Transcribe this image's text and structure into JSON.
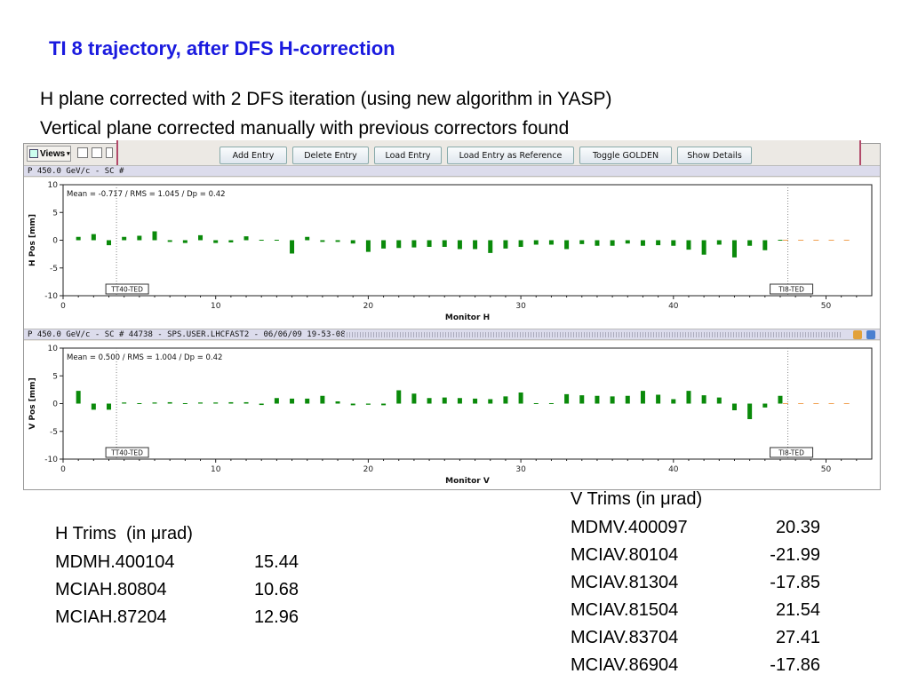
{
  "header": {
    "title": "TI 8 trajectory, after DFS H-correction",
    "line1": "H plane corrected with 2 DFS iteration (using new algorithm in YASP)",
    "line2": "Vertical plane corrected manually with previous correctors found"
  },
  "toolbar": {
    "views_label": "Views"
  },
  "popup_buttons": [
    "Add Entry",
    "Delete Entry",
    "Load Entry",
    "Load Entry as Reference",
    "Toggle GOLDEN",
    "Show Details"
  ],
  "panel_h": {
    "header": "P 450.0 GeV/c - SC #"
  },
  "panel_v": {
    "header": "P 450.0 GeV/c - SC # 44738 - SPS.USER.LHCFAST2 - 06/06/09 19-53-08"
  },
  "colors": {
    "bar": "#0a8a0a",
    "dash": "#f0a050",
    "marker": "#888888"
  },
  "chart_data": [
    {
      "type": "bar",
      "title": "",
      "stats": "Mean =  -0.717 / RMS =   1.045 / Dp =   0.42",
      "xlabel": "Monitor H",
      "ylabel": "H Pos [mm]",
      "xlim": [
        0,
        53
      ],
      "ylim": [
        -10,
        10
      ],
      "xticks": [
        0,
        10,
        20,
        30,
        40,
        50
      ],
      "yticks": [
        10,
        5,
        0,
        -5,
        -10
      ],
      "markers": [
        {
          "x": 3.5,
          "label": "TT40-TED"
        },
        {
          "x": 47.5,
          "label": "TI8-TED"
        }
      ],
      "x": [
        1,
        2,
        3,
        4,
        5,
        6,
        7,
        8,
        9,
        10,
        11,
        12,
        13,
        14,
        15,
        16,
        17,
        18,
        19,
        20,
        21,
        22,
        23,
        24,
        25,
        26,
        27,
        28,
        29,
        30,
        31,
        32,
        33,
        34,
        35,
        36,
        37,
        38,
        39,
        40,
        41,
        42,
        43,
        44,
        45,
        46,
        47
      ],
      "values": [
        0.6,
        1.1,
        -0.9,
        0.6,
        0.8,
        1.6,
        -0.3,
        -0.5,
        0.9,
        -0.5,
        -0.4,
        0.7,
        -0.1,
        -0.05,
        -2.4,
        0.6,
        -0.3,
        -0.3,
        -0.6,
        -2.1,
        -1.5,
        -1.4,
        -1.3,
        -1.2,
        -1.2,
        -1.6,
        -1.6,
        -2.3,
        -1.5,
        -1.2,
        -0.8,
        -0.8,
        -1.6,
        -0.7,
        -1.0,
        -1.0,
        -0.6,
        -1.0,
        -0.9,
        -1.0,
        -1.7,
        -2.6,
        -0.8,
        -3.1,
        -1.0,
        -1.8,
        -0.1
      ],
      "dashed_x": [
        47,
        48,
        49,
        50,
        51
      ]
    },
    {
      "type": "bar",
      "title": "",
      "stats": "Mean =   0.500 / RMS =   1.004 / Dp =   0.42",
      "xlabel": "Monitor V",
      "ylabel": "V Pos [mm]",
      "xlim": [
        0,
        53
      ],
      "ylim": [
        -10,
        10
      ],
      "xticks": [
        0,
        10,
        20,
        30,
        40,
        50
      ],
      "yticks": [
        10,
        5,
        0,
        -5,
        -10
      ],
      "markers": [
        {
          "x": 3.5,
          "label": "TT40-TED"
        },
        {
          "x": 47.5,
          "label": "TI8-TED"
        }
      ],
      "x": [
        1,
        2,
        3,
        4,
        5,
        6,
        7,
        8,
        9,
        10,
        11,
        12,
        13,
        14,
        15,
        16,
        17,
        18,
        19,
        20,
        21,
        22,
        23,
        24,
        25,
        26,
        27,
        28,
        29,
        30,
        31,
        32,
        33,
        34,
        35,
        36,
        37,
        38,
        39,
        40,
        41,
        42,
        43,
        44,
        45,
        46,
        47
      ],
      "values": [
        2.3,
        -1.1,
        -1.1,
        0.2,
        0.15,
        0.2,
        0.25,
        0.15,
        0.2,
        0.2,
        0.25,
        0.25,
        -0.25,
        1.0,
        0.9,
        0.9,
        1.4,
        0.4,
        -0.3,
        -0.2,
        -0.3,
        2.4,
        1.8,
        1.0,
        1.1,
        1.0,
        0.9,
        0.8,
        1.3,
        2.0,
        0.1,
        -0.1,
        1.7,
        1.5,
        1.4,
        1.3,
        1.4,
        2.3,
        1.6,
        0.8,
        2.3,
        1.5,
        1.1,
        -1.2,
        -2.8,
        -0.7,
        1.4
      ],
      "dashed_x": [
        47,
        48,
        49,
        50,
        51
      ]
    }
  ],
  "h_trims": {
    "title": "H Trims  (in μrad)",
    "rows": [
      {
        "name": "MDMH.400104",
        "value": "15.44"
      },
      {
        "name": "MCIAH.80804",
        "value": "10.68"
      },
      {
        "name": "MCIAH.87204",
        "value": "12.96"
      }
    ]
  },
  "v_trims": {
    "title": "V Trims (in μrad)",
    "rows": [
      {
        "name": "MDMV.400097",
        "value": "20.39"
      },
      {
        "name": "MCIAV.80104",
        "value": "-21.99"
      },
      {
        "name": "MCIAV.81304",
        "value": "-17.85"
      },
      {
        "name": "MCIAV.81504",
        "value": "21.54"
      },
      {
        "name": "MCIAV.83704",
        "value": "27.41"
      },
      {
        "name": "MCIAV.86904",
        "value": "-17.86"
      }
    ]
  }
}
